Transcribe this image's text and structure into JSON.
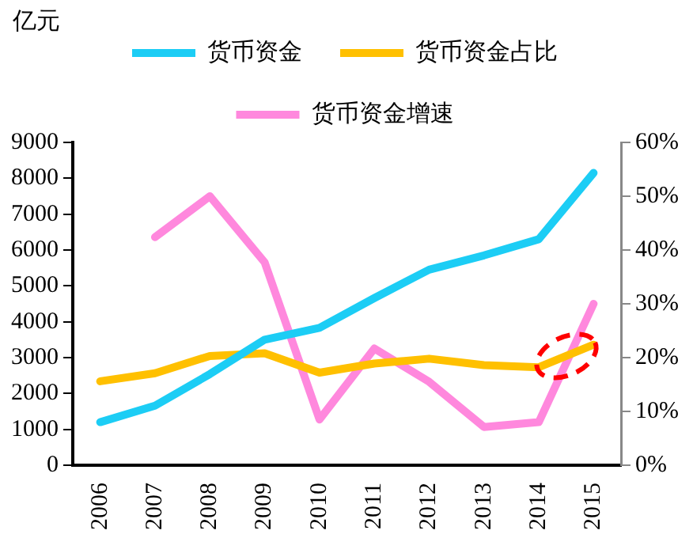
{
  "chart_data": {
    "type": "line",
    "ylabel": "亿元",
    "categories": [
      "2006",
      "2007",
      "2008",
      "2009",
      "2010",
      "2011",
      "2012",
      "2013",
      "2014",
      "2015"
    ],
    "series": [
      {
        "name": "货币资金",
        "color": "#1ccdf5",
        "values": [
          1200,
          1660,
          2540,
          3500,
          3830,
          4660,
          5450,
          5850,
          6300,
          8150
        ]
      },
      {
        "name": "货币资金占比",
        "color": "#ffc000",
        "axis": "y2",
        "values": [
          15.6,
          17.1,
          20.3,
          20.8,
          17.2,
          18.9,
          19.8,
          18.6,
          18.2,
          22.4
        ]
      },
      {
        "name": "货币资金增速",
        "color": "#ff88dd",
        "axis": "y2",
        "values": [
          null,
          42.4,
          50.0,
          37.7,
          8.5,
          21.7,
          15.5,
          7.1,
          8.0,
          30.0
        ]
      }
    ],
    "ylim": [
      0,
      9000
    ],
    "yticks": [
      0,
      1000,
      2000,
      3000,
      4000,
      5000,
      6000,
      7000,
      8000,
      9000
    ],
    "y2lim": [
      0,
      60
    ],
    "y2ticks": [
      {
        "value": 0,
        "label": "0%"
      },
      {
        "value": 10,
        "label": "10%"
      },
      {
        "value": 20,
        "label": "20%"
      },
      {
        "value": 30,
        "label": "30%"
      },
      {
        "value": 40,
        "label": "40%"
      },
      {
        "value": 50,
        "label": "50%"
      },
      {
        "value": 60,
        "label": "60%"
      }
    ],
    "grid": false,
    "legend": "top",
    "marker": "none",
    "line_style": "solid"
  }
}
